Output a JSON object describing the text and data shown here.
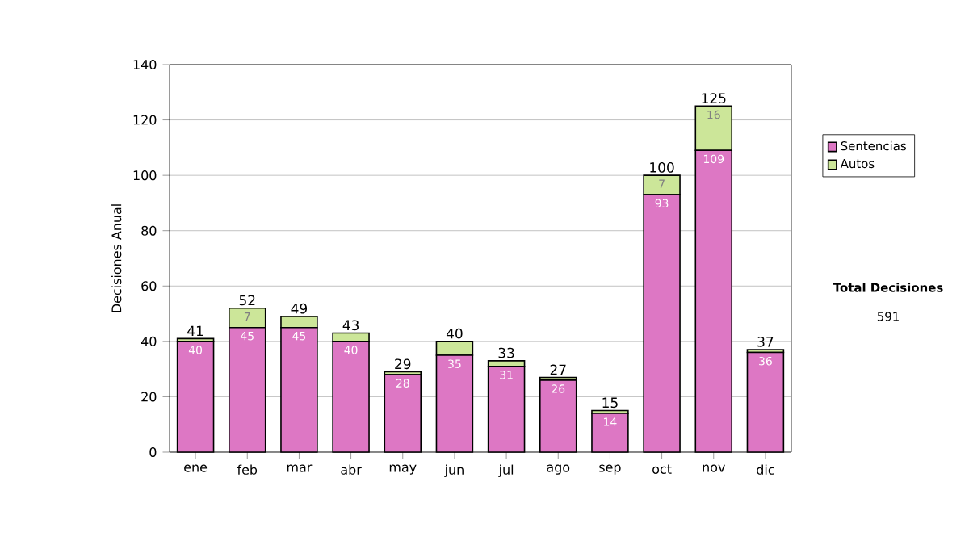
{
  "chart_data": {
    "type": "bar",
    "stacked": true,
    "ylabel": "Decisiones Anual",
    "categories": [
      "ene",
      "feb",
      "mar",
      "abr",
      "may",
      "jun",
      "jul",
      "ago",
      "sep",
      "oct",
      "nov",
      "dic"
    ],
    "series": [
      {
        "name": "Sentencias",
        "color": "#dd77c4",
        "values": [
          40,
          45,
          45,
          40,
          28,
          35,
          31,
          26,
          14,
          93,
          109,
          36
        ],
        "value_labels": [
          "40",
          "45",
          "45",
          "40",
          "28",
          "35",
          "31",
          "26",
          "14",
          "93",
          "109",
          "36"
        ]
      },
      {
        "name": "Autos",
        "color": "#cce699",
        "values": [
          1,
          7,
          4,
          3,
          1,
          5,
          2,
          1,
          1,
          7,
          16,
          1
        ],
        "value_labels": [
          null,
          "7",
          null,
          null,
          null,
          null,
          null,
          null,
          null,
          "7",
          "16",
          null
        ]
      }
    ],
    "totals": [
      "41",
      "52",
      "49",
      "43",
      "29",
      "40",
      "33",
      "27",
      "15",
      "100",
      "125",
      "37"
    ],
    "ylim": [
      0,
      140
    ],
    "yticks": [
      0,
      20,
      40,
      60,
      80,
      100,
      120,
      140
    ],
    "grid": "y",
    "legend": "right",
    "annotations": [
      "Total Decisiones",
      "591"
    ]
  }
}
